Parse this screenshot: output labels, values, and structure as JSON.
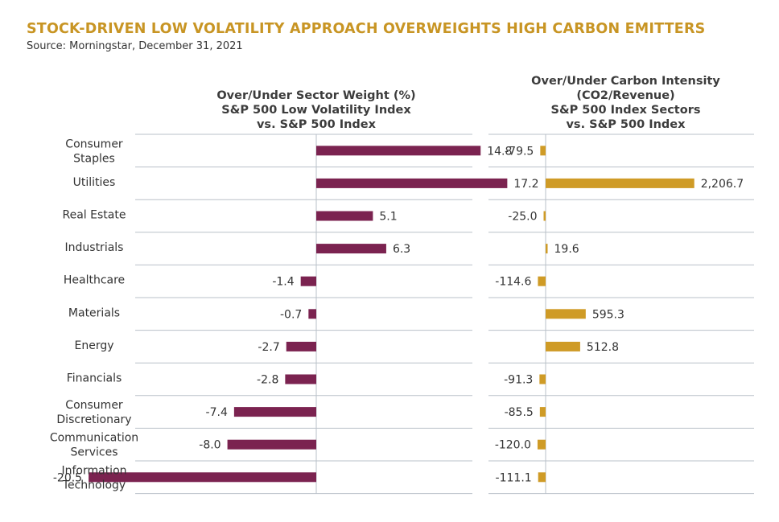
{
  "header": {
    "title": "STOCK-DRIVEN LOW VOLATILITY APPROACH OVERWEIGHTS HIGH CARBON EMITTERS",
    "source": "Source: Morningstar, December 31, 2021"
  },
  "colors": {
    "title": "#c89524",
    "left_bar": "#7b2350",
    "right_bar": "#cf9b26",
    "grid": "#b9c0c8"
  },
  "chart_data": [
    {
      "type": "bar",
      "orientation": "horizontal",
      "title_lines": [
        "Over/Under Sector Weight (%)",
        "S&P 500 Low Volatility Index",
        "vs. S&P 500 Index"
      ],
      "categories": [
        [
          "Consumer",
          "Staples"
        ],
        [
          "Utilities"
        ],
        [
          "Real Estate"
        ],
        [
          "Industrials"
        ],
        [
          "Healthcare"
        ],
        [
          "Materials"
        ],
        [
          "Energy"
        ],
        [
          "Financials"
        ],
        [
          "Consumer",
          "Discretionary"
        ],
        [
          "Communication",
          "Services"
        ],
        [
          "Information",
          "Technology"
        ]
      ],
      "values": [
        14.8,
        17.2,
        5.1,
        6.3,
        -1.4,
        -0.7,
        -2.7,
        -2.8,
        -7.4,
        -8.0,
        -20.5
      ],
      "labels": [
        "14.8",
        "17.2",
        "5.1",
        "6.3",
        "-1.4",
        "-0.7",
        "-2.7",
        "-2.8",
        "-7.4",
        "-8.0",
        "-20.5"
      ],
      "xlim": [
        -21,
        20
      ]
    },
    {
      "type": "bar",
      "orientation": "horizontal",
      "title_lines": [
        "Over/Under Carbon Intensity",
        "(CO2/Revenue)",
        "S&P 500 Index Sectors",
        "vs. S&P 500 Index"
      ],
      "categories": [
        [
          "Consumer",
          "Staples"
        ],
        [
          "Utilities"
        ],
        [
          "Real Estate"
        ],
        [
          "Industrials"
        ],
        [
          "Healthcare"
        ],
        [
          "Materials"
        ],
        [
          "Energy"
        ],
        [
          "Financials"
        ],
        [
          "Consumer",
          "Discretionary"
        ],
        [
          "Communication",
          "Services"
        ],
        [
          "Information",
          "Technology"
        ]
      ],
      "values": [
        -79.5,
        2206.7,
        -25.0,
        19.6,
        -114.6,
        595.3,
        512.8,
        -91.3,
        -85.5,
        -120.0,
        -111.1
      ],
      "labels": [
        "-79.5",
        "2,206.7",
        "-25.0",
        "19.6",
        "-114.6",
        "595.3",
        "512.8",
        "-91.3",
        "-85.5",
        "-120.0",
        "-111.1"
      ],
      "xlim": [
        -850,
        3000
      ]
    }
  ]
}
